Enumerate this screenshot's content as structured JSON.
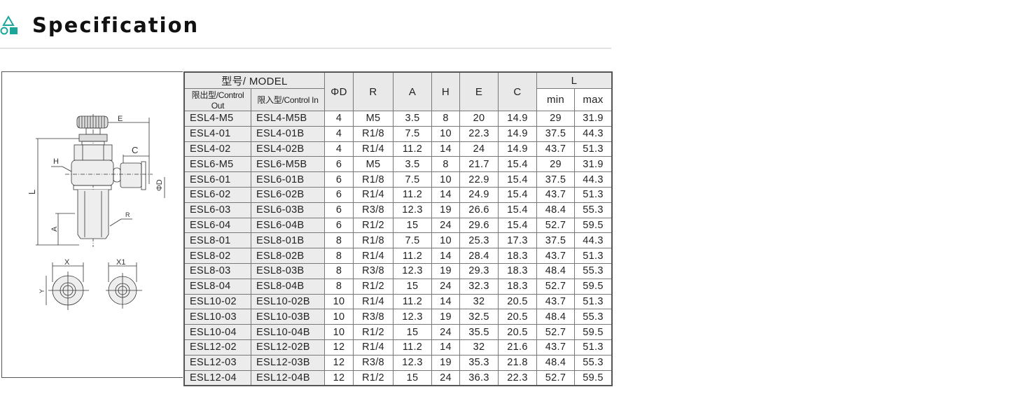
{
  "header": {
    "title": "Specification",
    "icon": "shapes-icon",
    "accent": "#1aa79a"
  },
  "table": {
    "model_header": "型号/ MODEL",
    "control_out": "限出型/Control Out",
    "control_in": "限入型/Control In",
    "cols": [
      "ΦD",
      "R",
      "A",
      "H",
      "E",
      "C"
    ],
    "l_header": "L",
    "l_min": "min",
    "l_max": "max",
    "rows": [
      [
        "ESL4-M5",
        "ESL4-M5B",
        "4",
        "M5",
        "3.5",
        "8",
        "20",
        "14.9",
        "29",
        "31.9"
      ],
      [
        "ESL4-01",
        "ESL4-01B",
        "4",
        "R1/8",
        "7.5",
        "10",
        "22.3",
        "14.9",
        "37.5",
        "44.3"
      ],
      [
        "ESL4-02",
        "ESL4-02B",
        "4",
        "R1/4",
        "11.2",
        "14",
        "24",
        "14.9",
        "43.7",
        "51.3"
      ],
      [
        "ESL6-M5",
        "ESL6-M5B",
        "6",
        "M5",
        "3.5",
        "8",
        "21.7",
        "15.4",
        "29",
        "31.9"
      ],
      [
        "ESL6-01",
        "ESL6-01B",
        "6",
        "R1/8",
        "7.5",
        "10",
        "22.9",
        "15.4",
        "37.5",
        "44.3"
      ],
      [
        "ESL6-02",
        "ESL6-02B",
        "6",
        "R1/4",
        "11.2",
        "14",
        "24.9",
        "15.4",
        "43.7",
        "51.3"
      ],
      [
        "ESL6-03",
        "ESL6-03B",
        "6",
        "R3/8",
        "12.3",
        "19",
        "26.6",
        "15.4",
        "48.4",
        "55.3"
      ],
      [
        "ESL6-04",
        "ESL6-04B",
        "6",
        "R1/2",
        "15",
        "24",
        "29.6",
        "15.4",
        "52.7",
        "59.5"
      ],
      [
        "ESL8-01",
        "ESL8-01B",
        "8",
        "R1/8",
        "7.5",
        "10",
        "25.3",
        "17.3",
        "37.5",
        "44.3"
      ],
      [
        "ESL8-02",
        "ESL8-02B",
        "8",
        "R1/4",
        "11.2",
        "14",
        "28.4",
        "18.3",
        "43.7",
        "51.3"
      ],
      [
        "ESL8-03",
        "ESL8-03B",
        "8",
        "R3/8",
        "12.3",
        "19",
        "29.3",
        "18.3",
        "48.4",
        "55.3"
      ],
      [
        "ESL8-04",
        "ESL8-04B",
        "8",
        "R1/2",
        "15",
        "24",
        "32.3",
        "18.3",
        "52.7",
        "59.5"
      ],
      [
        "ESL10-02",
        "ESL10-02B",
        "10",
        "R1/4",
        "11.2",
        "14",
        "32",
        "20.5",
        "43.7",
        "51.3"
      ],
      [
        "ESL10-03",
        "ESL10-03B",
        "10",
        "R3/8",
        "12.3",
        "19",
        "32.5",
        "20.5",
        "48.4",
        "55.3"
      ],
      [
        "ESL10-04",
        "ESL10-04B",
        "10",
        "R1/2",
        "15",
        "24",
        "35.5",
        "20.5",
        "52.7",
        "59.5"
      ],
      [
        "ESL12-02",
        "ESL12-02B",
        "12",
        "R1/4",
        "11.2",
        "14",
        "32",
        "21.6",
        "43.7",
        "51.3"
      ],
      [
        "ESL12-03",
        "ESL12-03B",
        "12",
        "R3/8",
        "12.3",
        "19",
        "35.3",
        "21.8",
        "48.4",
        "55.3"
      ],
      [
        "ESL12-04",
        "ESL12-04B",
        "12",
        "R1/2",
        "15",
        "24",
        "36.3",
        "22.3",
        "52.7",
        "59.5"
      ]
    ]
  },
  "drawing": {
    "labels": {
      "E": "E",
      "C": "C",
      "H": "H",
      "L": "L",
      "A": "A",
      "R": "R",
      "D": "ΦD",
      "X": "X",
      "X1": "X1",
      "Y": "Y"
    }
  }
}
